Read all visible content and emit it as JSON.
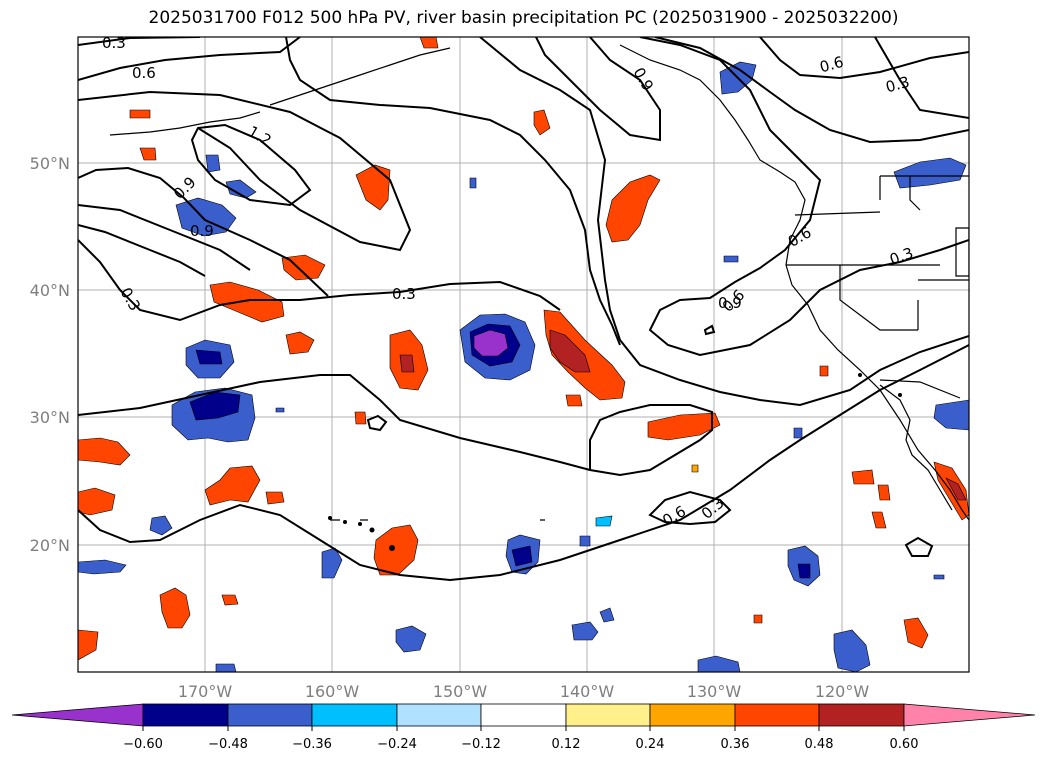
{
  "title": "2025031700 F012 500 hPa PV, river basin precipitation PC (2025031900 - 2025032200)",
  "map": {
    "lat_labels": [
      "50°N",
      "40°N",
      "30°N",
      "20°N"
    ],
    "lon_labels": [
      "170°W",
      "160°W",
      "150°W",
      "140°W",
      "130°W",
      "120°W"
    ],
    "contour_labels": [
      "0.3",
      "0.6",
      "1.2",
      "0.9",
      "0.9",
      "0.3",
      "0.3",
      "0.9",
      "0.6",
      "0.6",
      "0.3",
      "0.6",
      "0.9",
      "0.3",
      "0.6",
      "0.3"
    ]
  },
  "colorbar": {
    "ticks": [
      "−0.60",
      "−0.48",
      "−0.36",
      "−0.24",
      "−0.12",
      "0.12",
      "0.24",
      "0.36",
      "0.48",
      "0.60"
    ],
    "colors": [
      "#9932cc",
      "#00008b",
      "#3a5fcd",
      "#00bfff",
      "#b0e2ff",
      "#ffffff",
      "#fff08c",
      "#ffa500",
      "#ff4500",
      "#b22222",
      "#ff82ab"
    ],
    "extend": "both"
  },
  "legend_colors": {
    "lowest": "#9932cc",
    "darkblue": "#00008b",
    "blue": "#3a5fcd",
    "cyan": "#00bfff",
    "lightblue": "#b0e2ff",
    "yellow": "#fff08c",
    "orange": "#ffa500",
    "redorange": "#ff4500",
    "darkred": "#b22222",
    "pink": "#ff82ab"
  }
}
